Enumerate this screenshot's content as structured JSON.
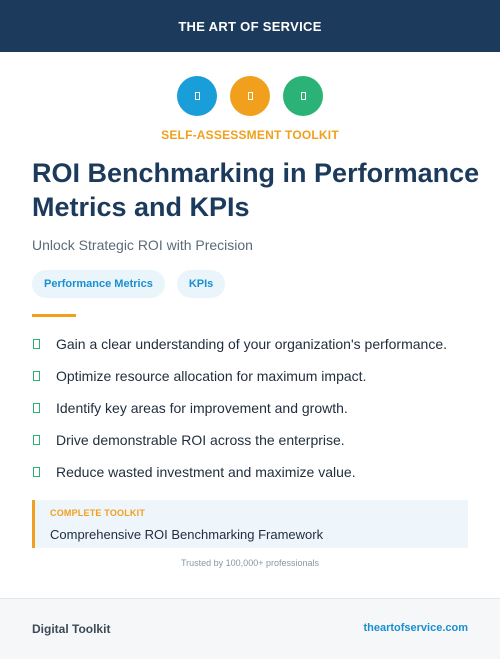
{
  "header": {
    "brand": "THE ART OF SERVICE"
  },
  "icons": [
    {
      "name": "toolkit-icon-blue",
      "color": "#1a9ed9"
    },
    {
      "name": "toolkit-icon-orange",
      "color": "#f0a01c"
    },
    {
      "name": "toolkit-icon-green",
      "color": "#2bb277"
    }
  ],
  "eyebrow": "SELF-ASSESSMENT TOOLKIT",
  "title": "ROI Benchmarking in Performance Metrics and KPIs",
  "subtitle": "Unlock Strategic ROI with Precision",
  "tags": [
    "Performance Metrics",
    "KPIs"
  ],
  "benefits": [
    "Gain a clear understanding of your organization's performance.",
    "Optimize resource allocation for maximum impact.",
    "Identify key areas for improvement and growth.",
    "Drive demonstrable ROI across the enterprise.",
    "Reduce wasted investment and maximize value."
  ],
  "callout": {
    "label": "COMPLETE TOOLKIT",
    "value": "Comprehensive ROI Benchmarking Framework"
  },
  "trust_note": "Trusted by 100,000+ professionals",
  "footer": {
    "left": "Digital Toolkit",
    "right": "theartofservice.com"
  },
  "colors": {
    "navy": "#1c3a5b",
    "accent_orange": "#f0a01c",
    "accent_blue": "#1a8fcf",
    "accent_green": "#2bb277"
  }
}
